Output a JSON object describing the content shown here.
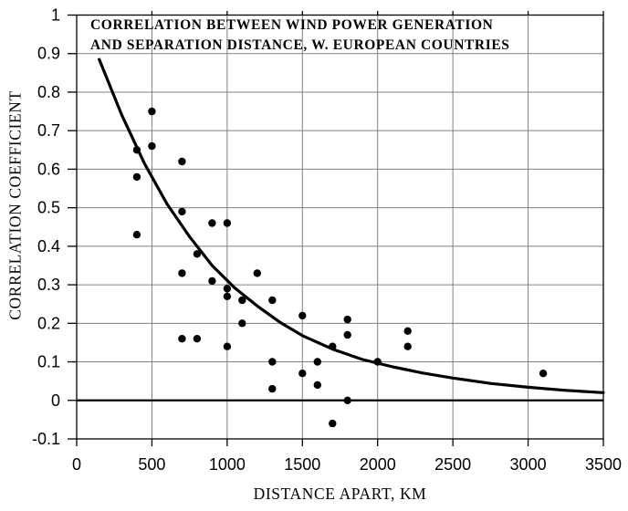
{
  "title": {
    "line1": "CORRELATION BETWEEN WIND POWER GENERATION",
    "line2": "AND SEPARATION DISTANCE, W. EUROPEAN COUNTRIES"
  },
  "chart_data": {
    "type": "scatter",
    "title": "CORRELATION BETWEEN WIND POWER GENERATION AND SEPARATION DISTANCE, W. EUROPEAN COUNTRIES",
    "xlabel": "DISTANCE APART, KM",
    "ylabel": "CORRELATION COEFFICIENT",
    "xlim": [
      0,
      3500
    ],
    "ylim": [
      -0.1,
      1.0
    ],
    "x_ticks": [
      0,
      500,
      1000,
      1500,
      2000,
      2500,
      3000,
      3500
    ],
    "y_ticks": [
      1,
      0.9,
      0.8,
      0.7,
      0.6,
      0.5,
      0.4,
      0.3,
      0.2,
      0.1,
      0,
      -0.1
    ],
    "grid": true,
    "legend": "none",
    "points": [
      [
        400,
        0.65
      ],
      [
        400,
        0.58
      ],
      [
        400,
        0.43
      ],
      [
        500,
        0.75
      ],
      [
        500,
        0.66
      ],
      [
        700,
        0.62
      ],
      [
        700,
        0.49
      ],
      [
        700,
        0.33
      ],
      [
        700,
        0.16
      ],
      [
        800,
        0.38
      ],
      [
        800,
        0.16
      ],
      [
        900,
        0.46
      ],
      [
        900,
        0.31
      ],
      [
        1000,
        0.46
      ],
      [
        1000,
        0.29
      ],
      [
        1000,
        0.27
      ],
      [
        1000,
        0.14
      ],
      [
        1100,
        0.26
      ],
      [
        1100,
        0.2
      ],
      [
        1200,
        0.33
      ],
      [
        1300,
        0.26
      ],
      [
        1300,
        0.1
      ],
      [
        1300,
        0.03
      ],
      [
        1500,
        0.22
      ],
      [
        1500,
        0.07
      ],
      [
        1600,
        0.1
      ],
      [
        1600,
        0.04
      ],
      [
        1700,
        0.14
      ],
      [
        1700,
        -0.06
      ],
      [
        1800,
        0.21
      ],
      [
        1800,
        0.17
      ],
      [
        1800,
        0
      ],
      [
        2000,
        0.1
      ],
      [
        2200,
        0.18
      ],
      [
        2200,
        0.14
      ],
      [
        3100,
        0.07
      ]
    ],
    "fit_curve": {
      "name": "exponential-decay-fit",
      "points": [
        [
          150,
          0.885
        ],
        [
          300,
          0.74
        ],
        [
          450,
          0.615
        ],
        [
          600,
          0.51
        ],
        [
          750,
          0.425
        ],
        [
          900,
          0.35
        ],
        [
          1050,
          0.292
        ],
        [
          1200,
          0.245
        ],
        [
          1350,
          0.203
        ],
        [
          1500,
          0.168
        ],
        [
          1700,
          0.133
        ],
        [
          1900,
          0.106
        ],
        [
          2100,
          0.087
        ],
        [
          2300,
          0.071
        ],
        [
          2500,
          0.058
        ],
        [
          2750,
          0.044
        ],
        [
          3000,
          0.034
        ],
        [
          3250,
          0.026
        ],
        [
          3500,
          0.02
        ]
      ]
    },
    "colors": {
      "marker": "#000000",
      "curve": "#000000",
      "grid": "#808080",
      "axis": "#000000",
      "background": "#ffffff",
      "text": "#000000"
    }
  }
}
